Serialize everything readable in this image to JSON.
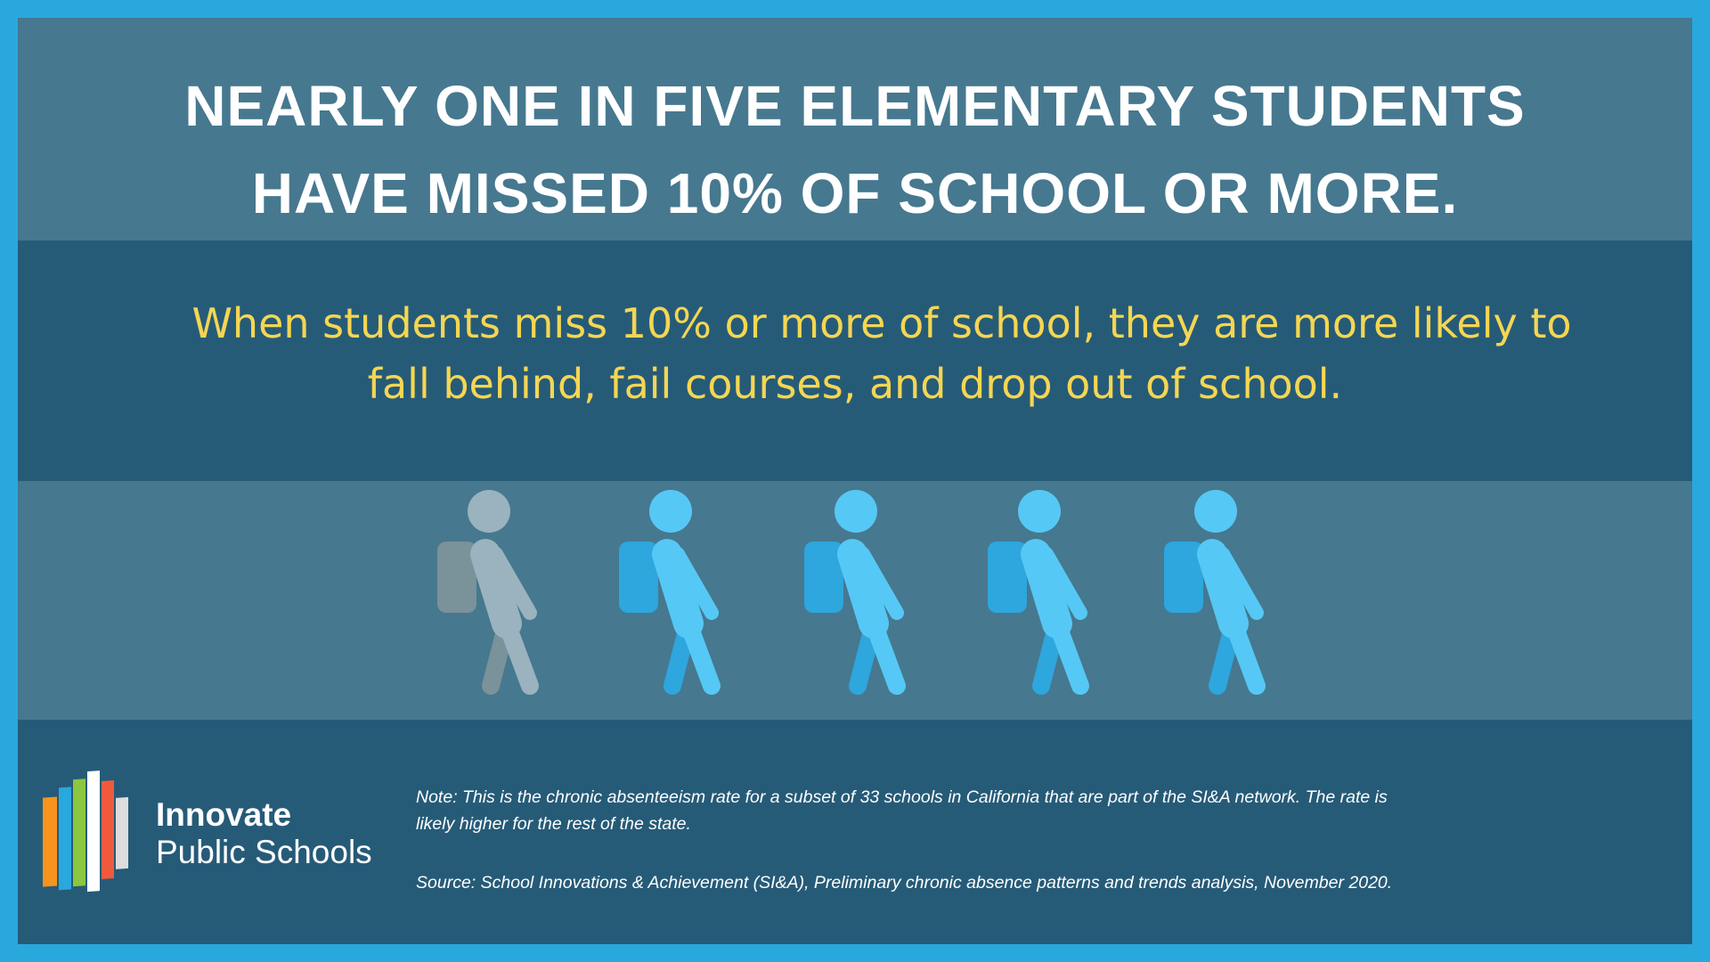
{
  "header": {
    "title": [
      "NEARLY ONE IN FIVE ELEMENTARY STUDENTS",
      "HAVE MISSED 10% OF SCHOOL OR MORE."
    ]
  },
  "subtitle": [
    "When students miss 10% or more of school, they are more likely to",
    "fall behind, fail courses, and drop out of school."
  ],
  "logo": {
    "name": "Innovate",
    "subname": "Public Schools"
  },
  "footer": {
    "note": [
      "Note: This is the chronic absenteeism rate for a subset of 33 schools in California that are part of the SI&A network. The rate is",
      "likely higher for the rest of the state."
    ],
    "source": "Source:  School Innovations & Achievement (SI&A), Preliminary chronic absence patterns and trends analysis, November 2020."
  }
}
